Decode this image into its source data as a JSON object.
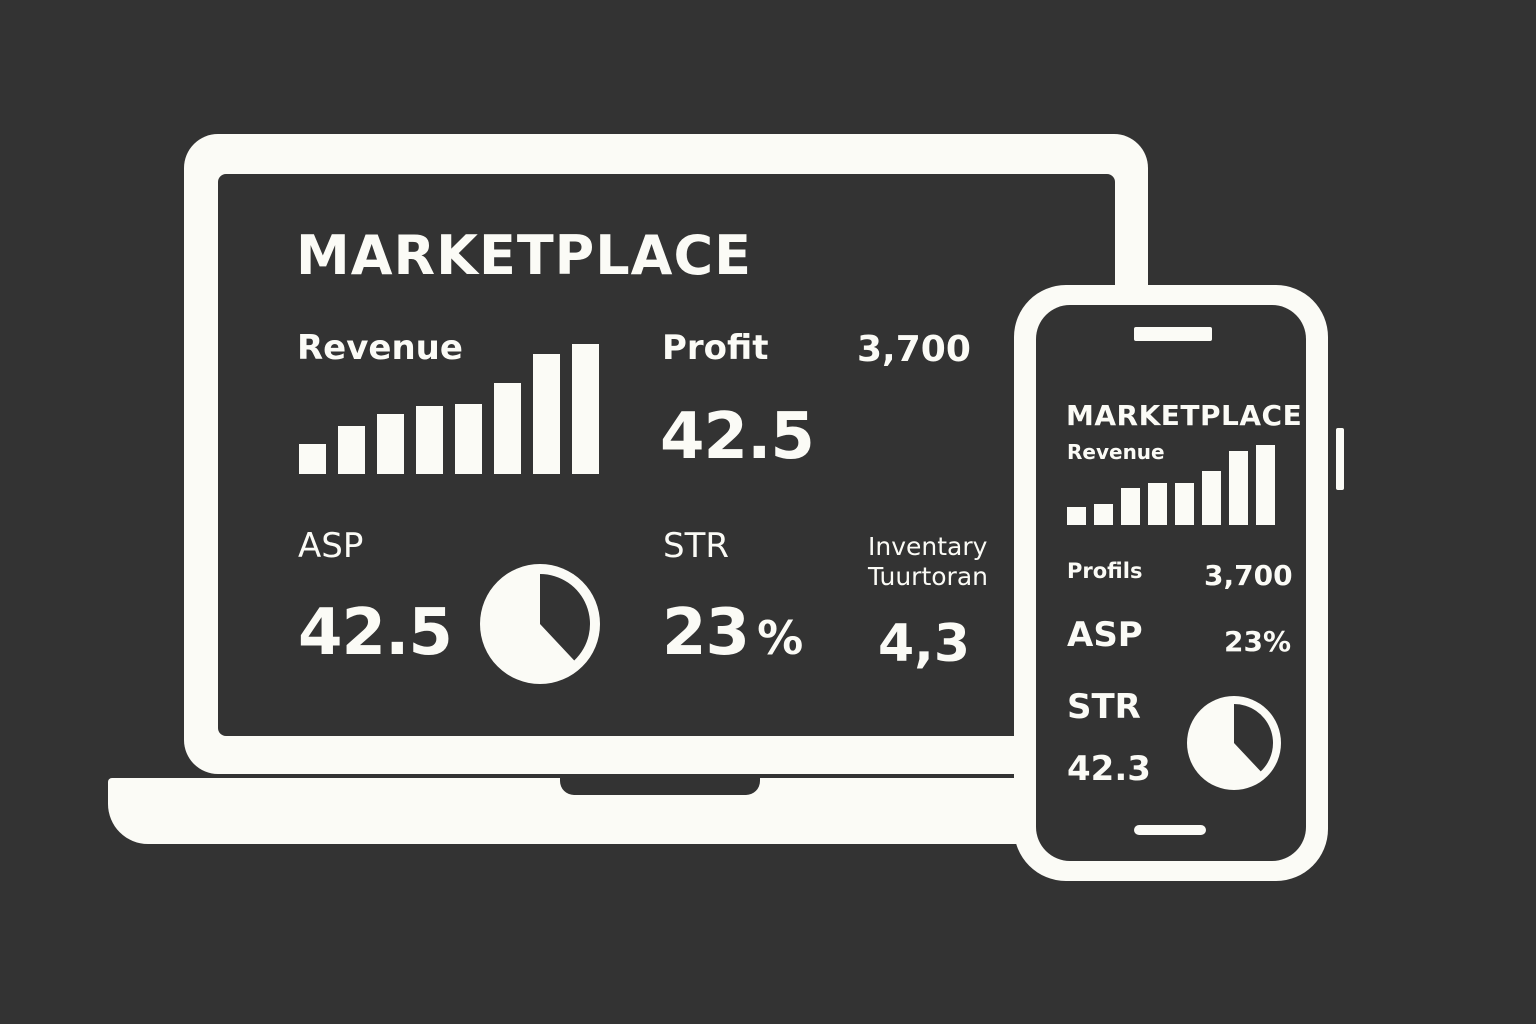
{
  "laptop": {
    "title": "MARKETPLACE",
    "revenue": {
      "label": "Revenue",
      "bars": [
        0.23,
        0.37,
        0.46,
        0.52,
        0.54,
        0.7,
        0.92,
        1.0
      ]
    },
    "profit": {
      "label": "Profit",
      "value": "42.5"
    },
    "top_right_value": "3,700",
    "asp": {
      "label": "ASP",
      "value": "42.5",
      "pie_fraction": 0.38
    },
    "str": {
      "label": "STR",
      "value": "23",
      "unit": "%"
    },
    "inventory": {
      "line1": "Inventary",
      "line2": "Tuurtoran",
      "value": "4,3"
    }
  },
  "phone": {
    "title": "MARKETPLACE",
    "revenue": {
      "label": "Revenue",
      "bars": [
        0.23,
        0.26,
        0.46,
        0.52,
        0.52,
        0.68,
        0.93,
        1.0
      ]
    },
    "profits": {
      "label": "Profils",
      "value": "3,700"
    },
    "asp": {
      "label": "ASP",
      "value": "23%"
    },
    "str": {
      "label": "STR",
      "value": "42.3",
      "pie_fraction": 0.38
    }
  },
  "colors": {
    "background": "#333333",
    "foreground": "#fbfbf6"
  }
}
